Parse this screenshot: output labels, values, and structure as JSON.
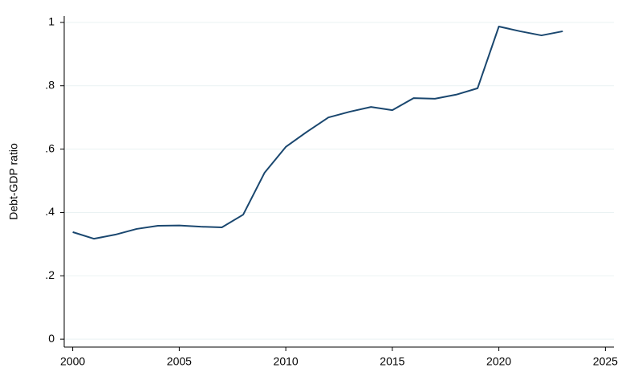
{
  "chart_data": {
    "type": "line",
    "y_label": "Debt-GDP ratio",
    "x": [
      2000,
      2001,
      2002,
      2003,
      2004,
      2005,
      2006,
      2007,
      2008,
      2009,
      2010,
      2011,
      2012,
      2013,
      2014,
      2015,
      2016,
      2017,
      2018,
      2019,
      2020,
      2021,
      2022,
      2023
    ],
    "series": [
      {
        "color": "#1a476f",
        "values": [
          0.338,
          0.317,
          0.33,
          0.348,
          0.358,
          0.359,
          0.355,
          0.353,
          0.393,
          0.525,
          0.607,
          0.655,
          0.7,
          0.718,
          0.733,
          0.723,
          0.761,
          0.759,
          0.772,
          0.792,
          0.987,
          0.972,
          0.959,
          0.972
        ]
      }
    ],
    "xlim": [
      1999.6,
      2025.4
    ],
    "xticks": [
      2000,
      2005,
      2010,
      2015,
      2020,
      2025
    ],
    "ylim": [
      -0.025,
      1.02
    ],
    "yticks": [
      0,
      {
        "value": 0.2,
        "label": ".2"
      },
      {
        "value": 0.4,
        "label": ".4"
      },
      {
        "value": 0.6,
        "label": ".6"
      },
      {
        "value": 0.8,
        "label": ".8"
      },
      1
    ],
    "grid": true
  }
}
